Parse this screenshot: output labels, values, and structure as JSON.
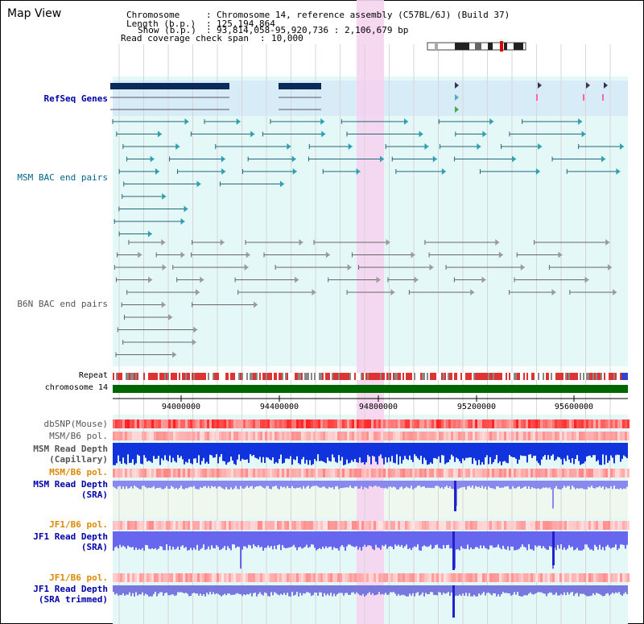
{
  "title": "Map View",
  "info": {
    "chromosome_label": "Chromosome",
    "chromosome_value": "Chromosome 14, reference assembly (C57BL/6J) (Build 37)",
    "length_label": "Length (b.p.)",
    "length_value": "125,194,864",
    "show_label": "Show (b.p.)",
    "show_value": "93,814,058-95,920,736 : 2,106,679 bp",
    "coverage_label": "Read coverage check span",
    "coverage_value": "10,000"
  },
  "tracks": {
    "refseq": "RefSeq Genes",
    "msm_bac": "MSM BAC end pairs",
    "b6n_bac": "B6N BAC end pairs",
    "repeat": "Repeat",
    "chromosome": "chromosome 14",
    "dbsnp": "dbSNP(Mouse)",
    "msm_b6_pol_1": "MSM/B6 pol.",
    "msm_depth_cap_1": "MSM Read Depth",
    "msm_depth_cap_2": "(Capillary)",
    "msm_b6_pol_2": "MSM/B6 pol.",
    "msm_depth_sra_1": "MSM Read Depth",
    "msm_depth_sra_2": "(SRA)",
    "jf1_b6_pol_1": "JF1/B6 pol.",
    "jf1_depth_sra_1": "JF1 Read Depth",
    "jf1_depth_sra_2": "(SRA)",
    "jf1_b6_pol_2": "JF1/B6 pol.",
    "jf1_depth_trim_1": "JF1 Read Depth",
    "jf1_depth_trim_2": "(SRA trimmed)"
  },
  "axis_ticks": [
    "94000000",
    "94400000",
    "94800000",
    "95200000",
    "95600000"
  ],
  "colors": {
    "label_blue": "#0000aa",
    "label_teal": "#006688",
    "label_orange": "#dd8800",
    "label_gray": "#555555",
    "highlight": "#f5d4f0",
    "track_bg": "#e4f8f8",
    "chromosome_bar": "#006600"
  }
}
